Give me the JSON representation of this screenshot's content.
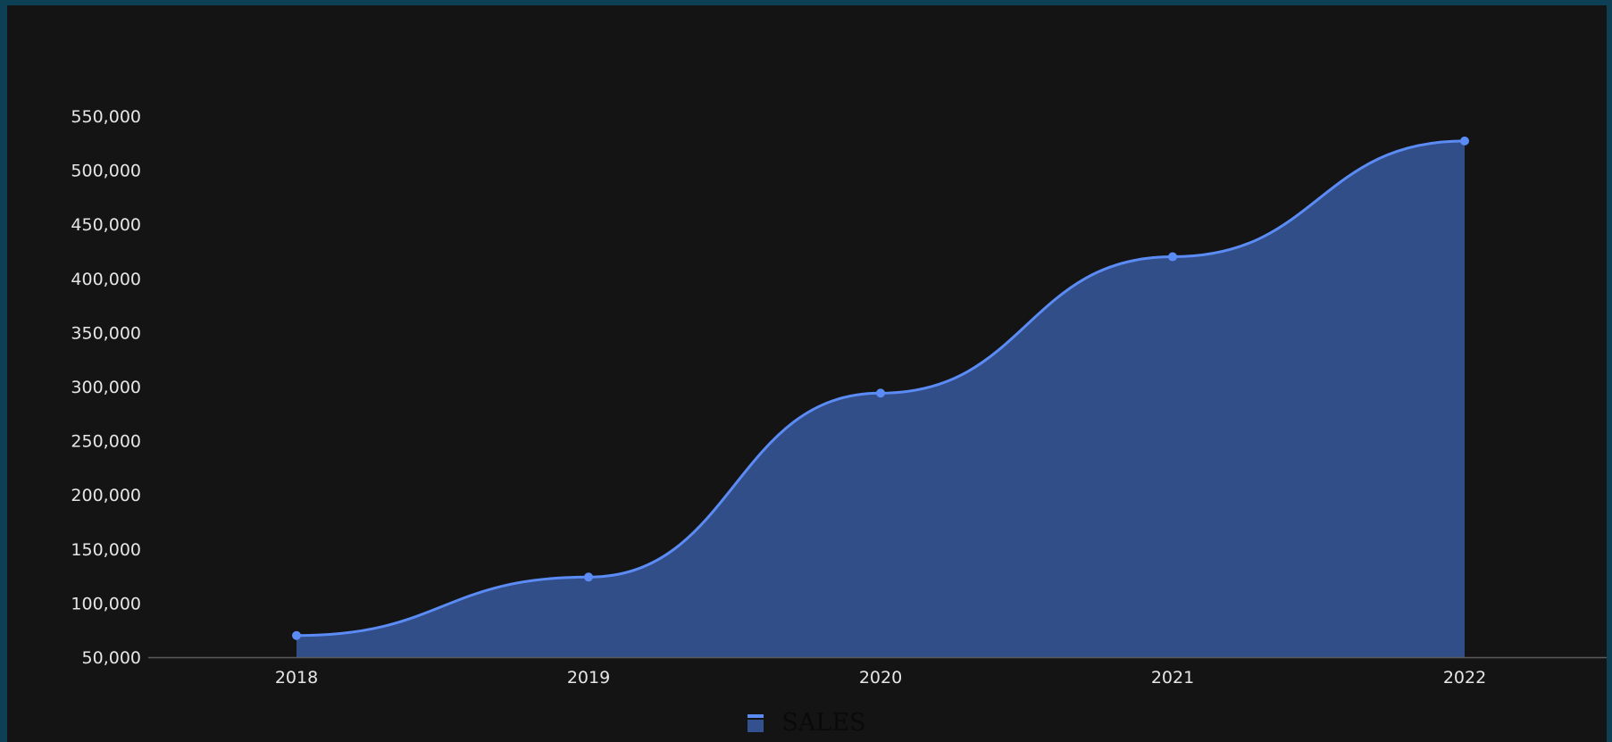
{
  "chart_data": {
    "type": "area",
    "x": [
      "2018",
      "2019",
      "2020",
      "2021",
      "2022"
    ],
    "series": [
      {
        "name": "SALES",
        "values": [
          70000,
          124000,
          294000,
          420000,
          527000
        ]
      }
    ],
    "ylim": [
      50000,
      550000
    ],
    "yticks": [
      50000,
      100000,
      150000,
      200000,
      250000,
      300000,
      350000,
      400000,
      450000,
      500000,
      550000
    ],
    "ytick_labels": [
      "50,000",
      "100,000",
      "150,000",
      "200,000",
      "250,000",
      "300,000",
      "350,000",
      "400,000",
      "450,000",
      "500,000",
      "550,000"
    ],
    "grid": false,
    "legend_position": "bottom-center",
    "colors": {
      "line": "#5b8cf5",
      "fill": "#34518f",
      "axis": "#5a5a5a"
    }
  }
}
